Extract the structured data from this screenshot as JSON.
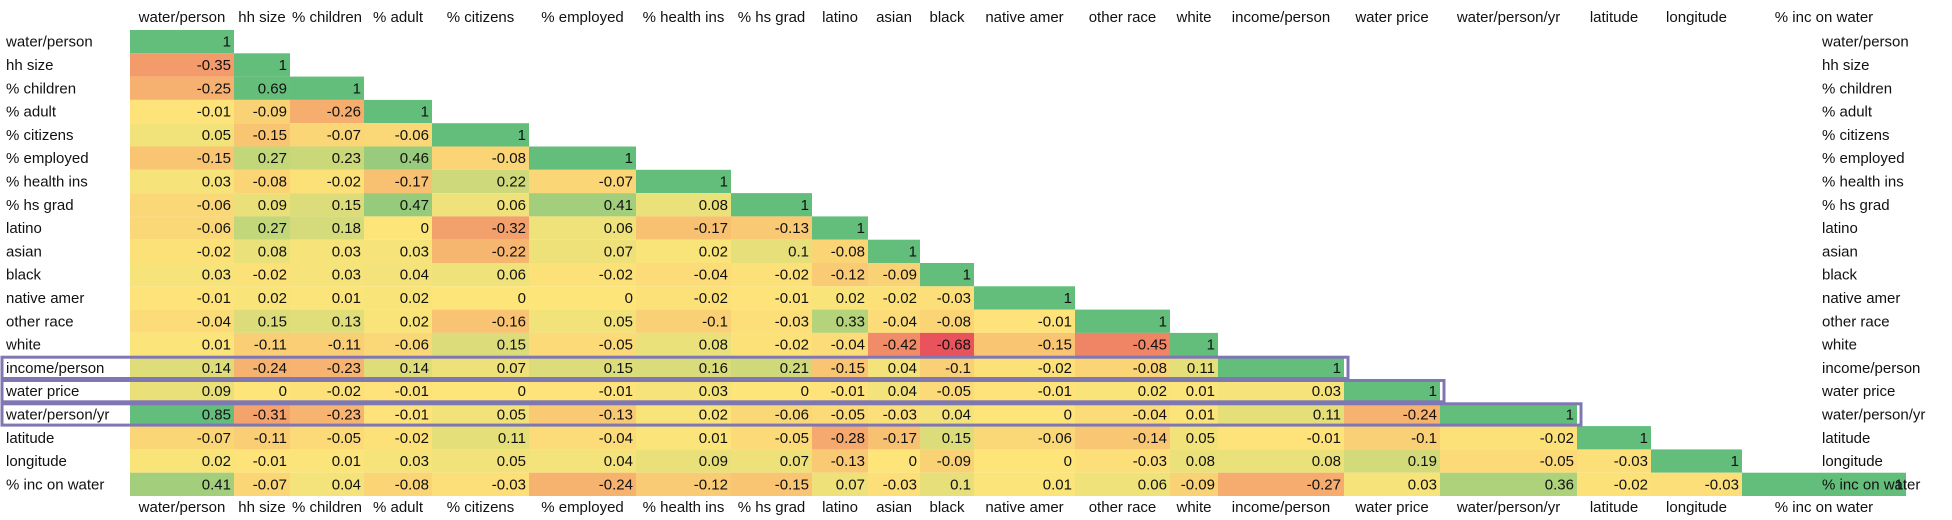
{
  "chart_data": {
    "type": "heatmap",
    "title": "",
    "xlabel": "",
    "ylabel": "",
    "variables": [
      "water/person",
      "hh size",
      "% children",
      "% adult",
      "% citizens",
      "% employed",
      "% health ins",
      "% hs grad",
      "latino",
      "asian",
      "black",
      "native amer",
      "other race",
      "white",
      "income/person",
      "water price",
      "water/person/yr",
      "latitude",
      "longitude",
      "% inc on water"
    ],
    "matrix": [
      [
        1
      ],
      [
        -0.35,
        1
      ],
      [
        -0.25,
        0.69,
        1
      ],
      [
        -0.01,
        -0.09,
        -0.26,
        1
      ],
      [
        0.05,
        -0.15,
        -0.07,
        -0.06,
        1
      ],
      [
        -0.15,
        0.27,
        0.23,
        0.46,
        -0.08,
        1
      ],
      [
        0.03,
        -0.08,
        -0.02,
        -0.17,
        0.22,
        -0.07,
        1
      ],
      [
        -0.06,
        0.09,
        0.15,
        0.47,
        0.06,
        0.41,
        0.08,
        1
      ],
      [
        -0.06,
        0.27,
        0.18,
        0,
        -0.32,
        0.06,
        -0.17,
        -0.13,
        1
      ],
      [
        -0.02,
        0.08,
        0.03,
        0.03,
        -0.22,
        0.07,
        0.02,
        0.1,
        -0.08,
        1
      ],
      [
        0.03,
        -0.02,
        0.03,
        0.04,
        0.06,
        -0.02,
        -0.04,
        -0.02,
        -0.12,
        -0.09,
        1
      ],
      [
        -0.01,
        0.02,
        0.01,
        0.02,
        0,
        0,
        -0.02,
        -0.01,
        0.02,
        -0.02,
        -0.03,
        1
      ],
      [
        -0.04,
        0.15,
        0.13,
        0.02,
        -0.16,
        0.05,
        -0.1,
        -0.03,
        0.33,
        -0.04,
        -0.08,
        -0.01,
        1
      ],
      [
        0.01,
        -0.11,
        -0.11,
        -0.06,
        0.15,
        -0.05,
        0.08,
        -0.02,
        -0.04,
        -0.42,
        -0.68,
        -0.15,
        -0.45,
        1
      ],
      [
        0.14,
        -0.24,
        -0.23,
        0.14,
        0.07,
        0.15,
        0.16,
        0.21,
        -0.15,
        0.04,
        -0.1,
        -0.02,
        -0.08,
        0.11,
        1
      ],
      [
        0.09,
        0,
        -0.02,
        -0.01,
        0,
        -0.01,
        0.03,
        0,
        -0.01,
        0.04,
        -0.05,
        -0.01,
        0.02,
        0.01,
        0.03,
        1
      ],
      [
        0.85,
        -0.31,
        -0.23,
        -0.01,
        0.05,
        -0.13,
        0.02,
        -0.06,
        -0.05,
        -0.03,
        0.04,
        0,
        -0.04,
        0.01,
        0.11,
        -0.24,
        1
      ],
      [
        -0.07,
        -0.11,
        -0.05,
        -0.02,
        0.11,
        -0.04,
        0.01,
        -0.05,
        -0.28,
        -0.17,
        0.15,
        -0.06,
        -0.14,
        0.05,
        -0.01,
        -0.1,
        -0.02,
        1
      ],
      [
        0.02,
        -0.01,
        0.01,
        0.03,
        0.05,
        0.04,
        0.09,
        0.07,
        -0.13,
        0,
        -0.09,
        0,
        -0.03,
        0.08,
        0.08,
        0.19,
        -0.05,
        -0.03,
        1
      ],
      [
        0.41,
        -0.07,
        0.04,
        -0.08,
        -0.03,
        -0.24,
        -0.12,
        -0.15,
        0.07,
        -0.03,
        0.1,
        0.01,
        0.06,
        -0.09,
        -0.27,
        0.03,
        0.36,
        -0.02,
        -0.03,
        1
      ]
    ],
    "color_scale": {
      "negative": "#e8505b",
      "neutral": "#fde57a",
      "positive": "#63be7b"
    },
    "highlighted_rows": [
      "income/person",
      "water price",
      "water/person/yr"
    ],
    "highlight_color": "#7f77b3",
    "grid": false,
    "legend": "none"
  }
}
